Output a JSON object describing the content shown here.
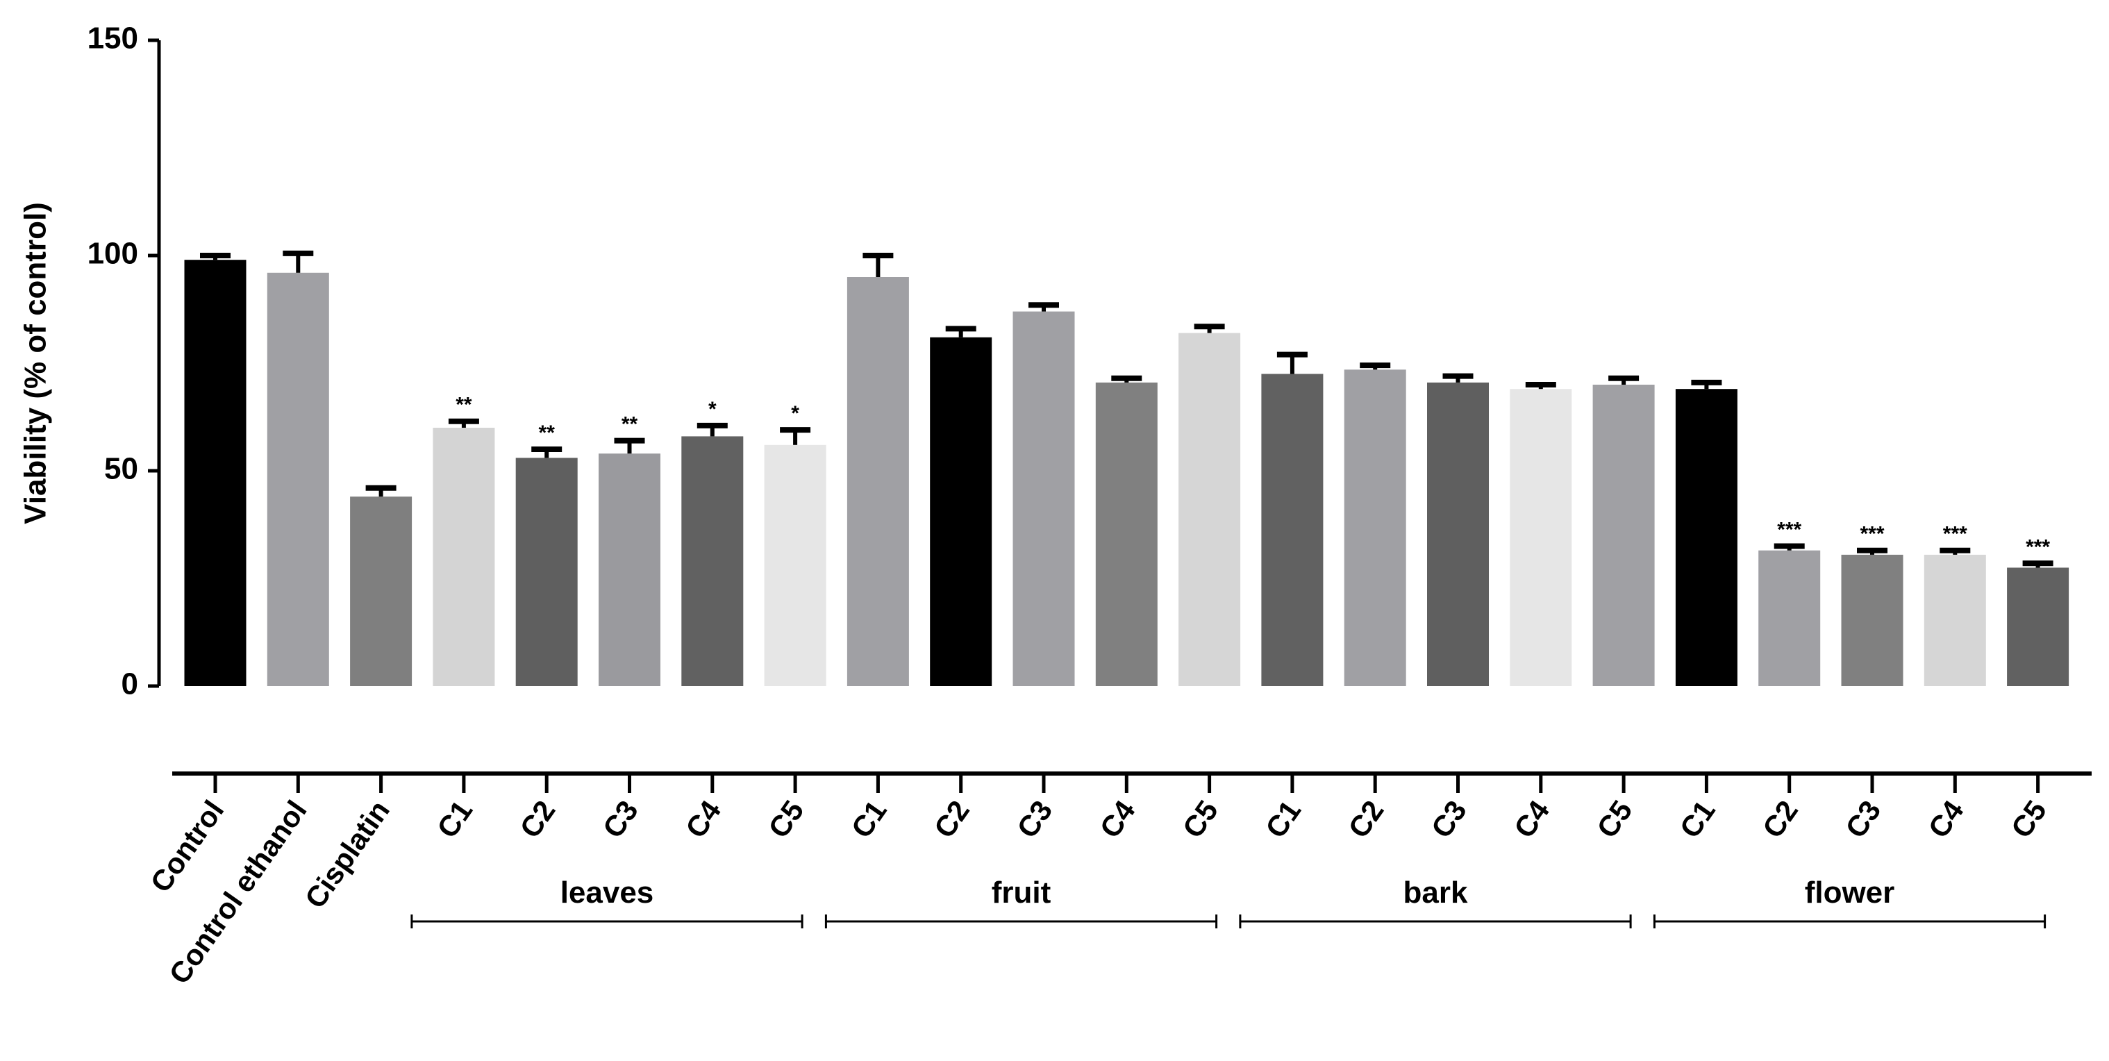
{
  "chart_data": {
    "type": "bar",
    "ylabel": "Viability (% of control)",
    "categories": [
      "Control",
      "Control ethanol",
      "Cisplatin",
      "C1",
      "C2",
      "C3",
      "C4",
      "C5",
      "C1",
      "C2",
      "C3",
      "C4",
      "C5",
      "C1",
      "C2",
      "C3",
      "C4",
      "C5",
      "C1",
      "C2",
      "C3",
      "C4",
      "C5"
    ],
    "category_groups": [
      null,
      null,
      null,
      "leaves",
      "leaves",
      "leaves",
      "leaves",
      "leaves",
      "fruit",
      "fruit",
      "fruit",
      "fruit",
      "fruit",
      "bark",
      "bark",
      "bark",
      "bark",
      "bark",
      "flower",
      "flower",
      "flower",
      "flower",
      "flower"
    ],
    "values": [
      99,
      96,
      44,
      60,
      53,
      54,
      58,
      56,
      95,
      81,
      87,
      70.5,
      82,
      72.5,
      73.5,
      70.5,
      69,
      70,
      69,
      31.5,
      30.5,
      30.5,
      27.5
    ],
    "errors": [
      1,
      4.5,
      2,
      1.5,
      2,
      3,
      2.5,
      3.5,
      5,
      2,
      1.5,
      1,
      1.5,
      4.5,
      1,
      1.5,
      1,
      1.5,
      1.5,
      1,
      1,
      1,
      1
    ],
    "significance": [
      null,
      null,
      null,
      "**",
      "**",
      "**",
      "*",
      "*",
      null,
      null,
      null,
      null,
      null,
      null,
      null,
      null,
      null,
      null,
      null,
      "***",
      "***",
      "***",
      "***"
    ],
    "colors": [
      "#000000",
      "#a0a0a4",
      "#7f7f7f",
      "#d4d4d4",
      "#5f5f5f",
      "#9a9a9e",
      "#616161",
      "#e6e6e6",
      "#a0a0a4",
      "#000000",
      "#a0a0a4",
      "#808080",
      "#d6d6d6",
      "#616161",
      "#a0a0a4",
      "#5f5f5f",
      "#e6e6e6",
      "#a0a0a4",
      "#000000",
      "#a0a0a4",
      "#808080",
      "#d6d6d6",
      "#616161"
    ],
    "ylim": [
      0,
      150
    ],
    "yticks": [
      0,
      50,
      100,
      150
    ]
  }
}
